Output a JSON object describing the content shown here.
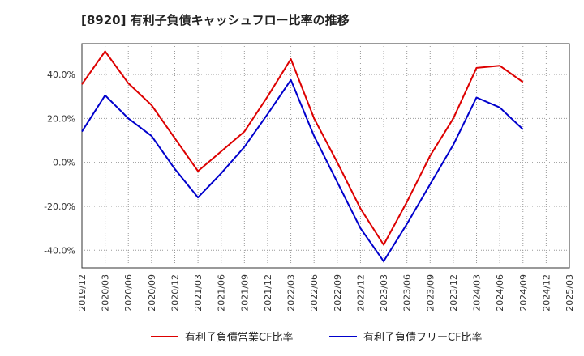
{
  "chart_data": {
    "type": "line",
    "title": "[8920]  有利子負債キャッシュフロー比率の推移",
    "x": [
      "2019/12",
      "2020/03",
      "2020/06",
      "2020/09",
      "2020/12",
      "2021/03",
      "2021/06",
      "2021/09",
      "2021/12",
      "2022/03",
      "2022/06",
      "2022/09",
      "2022/12",
      "2023/03",
      "2023/06",
      "2023/09",
      "2023/12",
      "2024/03",
      "2024/06",
      "2024/09",
      "2024/12",
      "2025/03"
    ],
    "ylim": [
      -48,
      54
    ],
    "yticks": [
      -40,
      -20,
      0,
      20,
      40
    ],
    "ytick_labels": [
      "-40.0%",
      "-20.0%",
      "0.0%",
      "20.0%",
      "40.0%"
    ],
    "grid": true,
    "legend_position": "bottom",
    "series": [
      {
        "name": "有利子負債営業CF比率",
        "color": "#dd0000",
        "values": [
          35.5,
          50.5,
          36,
          26,
          11,
          -4,
          5,
          14,
          30,
          47,
          20,
          0,
          -21,
          -37.5,
          -18,
          3,
          20,
          43,
          44,
          36.5,
          null,
          null
        ]
      },
      {
        "name": "有利子負債フリーCF比率",
        "color": "#0000cc",
        "values": [
          14,
          30.5,
          20,
          12,
          -3,
          -16,
          -5,
          7,
          22,
          37.5,
          12,
          -9,
          -30,
          -45,
          -28,
          -10,
          8,
          29.5,
          25,
          15,
          null,
          null
        ]
      }
    ]
  }
}
